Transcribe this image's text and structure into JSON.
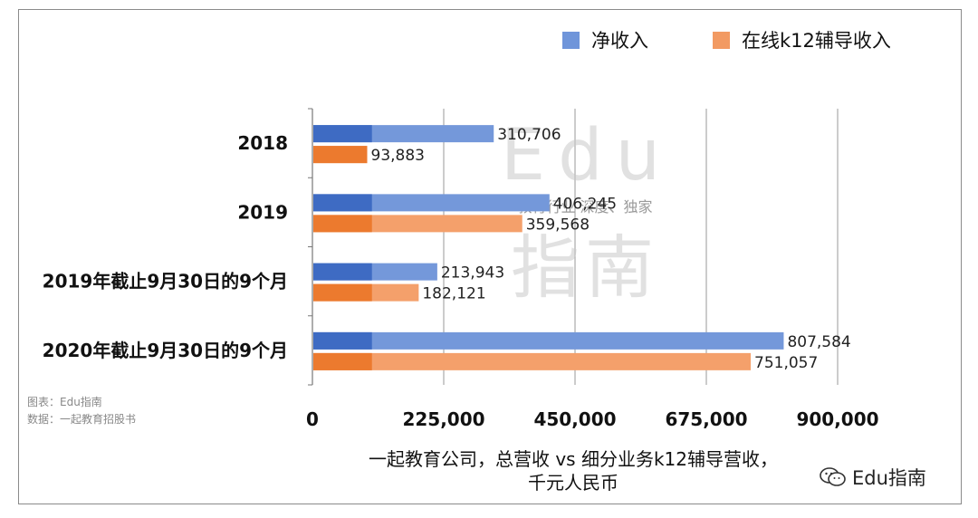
{
  "legend": {
    "items": [
      {
        "label": "净收入",
        "color": "#4472C4"
      },
      {
        "label": "在线k12辅导收入",
        "color": "#ED7D31"
      }
    ]
  },
  "watermark": {
    "big": "Edu",
    "tagline": "教育行业 深度、独家",
    "cn": "指南"
  },
  "source": {
    "line1": "图表：Edu指南",
    "line2": "数据：一起教育招股书"
  },
  "brand": {
    "name": "Edu指南",
    "icon": "wechat-icon"
  },
  "chart_data": {
    "type": "bar",
    "orientation": "horizontal",
    "title": "",
    "xlabel": "一起教育公司，总营收 vs 细分业务k12辅导营收，千元人民币",
    "xlabel_lines": [
      "一起教育公司，总营收 vs 细分业务k12辅导营收，",
      "千元人民币"
    ],
    "ylabel": "",
    "xlim": [
      0,
      900000
    ],
    "xticks": [
      0,
      225000,
      450000,
      675000,
      900000
    ],
    "xtick_labels": [
      "0",
      "225,000",
      "450,000",
      "675,000",
      "900,000"
    ],
    "grid": true,
    "legend_position": "top-right",
    "categories": [
      "2018",
      "2019",
      "2019年截止9月30日的9个月",
      "2020年截止9月30日的9个月"
    ],
    "series": [
      {
        "name": "净收入",
        "color": "#4472C4",
        "values": [
          310706,
          406245,
          213943,
          807584
        ],
        "labels": [
          "310,706",
          "406,245",
          "213,943",
          "807,584"
        ]
      },
      {
        "name": "在线k12辅导收入",
        "color": "#ED7D31",
        "values": [
          93883,
          359568,
          182121,
          751057
        ],
        "labels": [
          "93,883",
          "359,568",
          "182,121",
          "751,057"
        ]
      }
    ]
  }
}
